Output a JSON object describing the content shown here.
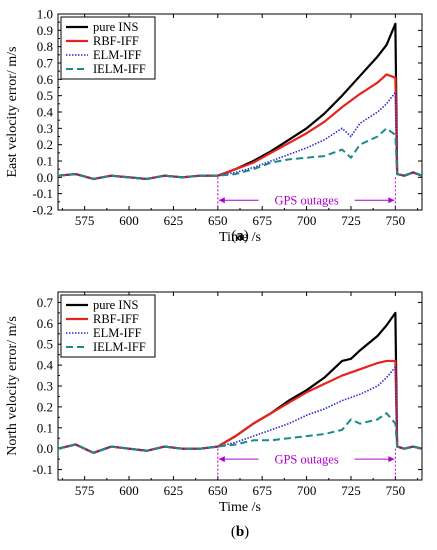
{
  "chart_data": [
    {
      "type": "line",
      "panel_label": "a",
      "xlabel": "Time /s",
      "ylabel": "East velocity error/ m/s",
      "xlim": [
        560,
        765
      ],
      "ylim": [
        -0.2,
        1.0
      ],
      "xticks": [
        575,
        600,
        625,
        650,
        675,
        700,
        725,
        750
      ],
      "yticks": [
        -0.2,
        -0.1,
        0.0,
        0.1,
        0.2,
        0.3,
        0.4,
        0.5,
        0.6,
        0.7,
        0.8,
        0.9,
        1.0
      ],
      "legend_position": "top-left",
      "annotation": {
        "text": "GPS outages",
        "x_start": 650,
        "x_end": 750,
        "y": -0.14
      },
      "series": [
        {
          "name": "pure INS",
          "color": "#000000",
          "style": "solid",
          "x": [
            560,
            570,
            580,
            590,
            600,
            610,
            620,
            630,
            640,
            650,
            660,
            670,
            680,
            690,
            700,
            710,
            720,
            730,
            740,
            745,
            750,
            751,
            755,
            760,
            765
          ],
          "y": [
            0.01,
            0.02,
            -0.01,
            0.01,
            0.0,
            -0.01,
            0.01,
            0.0,
            0.01,
            0.01,
            0.05,
            0.1,
            0.16,
            0.23,
            0.3,
            0.39,
            0.5,
            0.62,
            0.74,
            0.81,
            0.94,
            0.02,
            0.01,
            0.03,
            0.01
          ]
        },
        {
          "name": "RBF-IFF",
          "color": "#e8231c",
          "style": "solid",
          "x": [
            560,
            570,
            580,
            590,
            600,
            610,
            620,
            630,
            640,
            650,
            660,
            670,
            680,
            690,
            700,
            710,
            720,
            730,
            740,
            745,
            750,
            751,
            755,
            760,
            765
          ],
          "y": [
            0.01,
            0.02,
            -0.01,
            0.01,
            0.0,
            -0.01,
            0.01,
            0.0,
            0.01,
            0.01,
            0.05,
            0.09,
            0.15,
            0.21,
            0.27,
            0.34,
            0.43,
            0.51,
            0.58,
            0.63,
            0.61,
            0.02,
            0.01,
            0.03,
            0.01
          ]
        },
        {
          "name": "ELM-IFF",
          "color": "#2a2ad8",
          "style": "dotted",
          "x": [
            560,
            570,
            580,
            590,
            600,
            610,
            620,
            630,
            640,
            650,
            660,
            670,
            680,
            690,
            700,
            710,
            720,
            725,
            730,
            740,
            745,
            750,
            751,
            755,
            760,
            765
          ],
          "y": [
            0.01,
            0.02,
            -0.01,
            0.01,
            0.0,
            -0.01,
            0.01,
            0.0,
            0.01,
            0.01,
            0.03,
            0.06,
            0.1,
            0.14,
            0.18,
            0.23,
            0.3,
            0.25,
            0.33,
            0.4,
            0.45,
            0.52,
            0.02,
            0.01,
            0.03,
            0.01
          ]
        },
        {
          "name": "IELM-IFF",
          "color": "#1a8a8a",
          "style": "dashed",
          "x": [
            560,
            570,
            580,
            590,
            600,
            610,
            620,
            630,
            640,
            650,
            660,
            670,
            680,
            690,
            700,
            710,
            720,
            725,
            730,
            740,
            745,
            750,
            751,
            755,
            760,
            765
          ],
          "y": [
            0.01,
            0.02,
            -0.01,
            0.01,
            0.0,
            -0.01,
            0.01,
            0.0,
            0.01,
            0.01,
            0.02,
            0.05,
            0.09,
            0.11,
            0.12,
            0.13,
            0.17,
            0.12,
            0.2,
            0.25,
            0.3,
            0.26,
            0.02,
            0.01,
            0.03,
            0.01
          ]
        }
      ]
    },
    {
      "type": "line",
      "panel_label": "b",
      "xlabel": "Time /s",
      "ylabel": "North velocity error/ m/s",
      "xlim": [
        560,
        765
      ],
      "ylim": [
        -0.15,
        0.75
      ],
      "xticks": [
        575,
        600,
        625,
        650,
        675,
        700,
        725,
        750
      ],
      "yticks": [
        -0.1,
        0.0,
        0.1,
        0.2,
        0.3,
        0.4,
        0.5,
        0.6,
        0.7
      ],
      "legend_position": "top-left",
      "annotation": {
        "text": "GPS outages",
        "x_start": 650,
        "x_end": 750,
        "y": -0.05
      },
      "series": [
        {
          "name": "pure INS",
          "color": "#000000",
          "style": "solid",
          "x": [
            560,
            570,
            580,
            590,
            600,
            610,
            620,
            630,
            640,
            650,
            660,
            670,
            680,
            690,
            700,
            710,
            720,
            725,
            730,
            740,
            745,
            750,
            751,
            755,
            760,
            765
          ],
          "y": [
            0.0,
            0.02,
            -0.02,
            0.01,
            0.0,
            -0.01,
            0.01,
            0.0,
            0.0,
            0.01,
            0.06,
            0.12,
            0.17,
            0.23,
            0.28,
            0.34,
            0.42,
            0.43,
            0.47,
            0.54,
            0.59,
            0.65,
            0.01,
            0.0,
            0.01,
            0.0
          ]
        },
        {
          "name": "RBF-IFF",
          "color": "#e8231c",
          "style": "solid",
          "x": [
            560,
            570,
            580,
            590,
            600,
            610,
            620,
            630,
            640,
            650,
            660,
            670,
            680,
            690,
            700,
            710,
            720,
            730,
            740,
            745,
            750,
            751,
            755,
            760,
            765
          ],
          "y": [
            0.0,
            0.02,
            -0.02,
            0.01,
            0.0,
            -0.01,
            0.01,
            0.0,
            0.0,
            0.01,
            0.06,
            0.12,
            0.17,
            0.22,
            0.27,
            0.31,
            0.35,
            0.38,
            0.41,
            0.42,
            0.42,
            0.01,
            0.0,
            0.01,
            0.0
          ]
        },
        {
          "name": "ELM-IFF",
          "color": "#2a2ad8",
          "style": "dotted",
          "x": [
            560,
            570,
            580,
            590,
            600,
            610,
            620,
            630,
            640,
            650,
            660,
            670,
            680,
            690,
            700,
            710,
            720,
            730,
            740,
            745,
            750,
            751,
            755,
            760,
            765
          ],
          "y": [
            0.0,
            0.02,
            -0.02,
            0.01,
            0.0,
            -0.01,
            0.01,
            0.0,
            0.0,
            0.01,
            0.03,
            0.06,
            0.09,
            0.12,
            0.16,
            0.19,
            0.23,
            0.26,
            0.3,
            0.34,
            0.39,
            0.01,
            0.0,
            0.01,
            0.0
          ]
        },
        {
          "name": "IELM-IFF",
          "color": "#1a8a8a",
          "style": "dashed",
          "x": [
            560,
            570,
            580,
            590,
            600,
            610,
            620,
            630,
            640,
            650,
            660,
            670,
            680,
            690,
            700,
            710,
            720,
            725,
            730,
            740,
            745,
            750,
            751,
            755,
            760,
            765
          ],
          "y": [
            0.0,
            0.02,
            -0.02,
            0.01,
            0.0,
            -0.01,
            0.01,
            0.0,
            0.0,
            0.01,
            0.02,
            0.04,
            0.04,
            0.05,
            0.06,
            0.07,
            0.09,
            0.14,
            0.12,
            0.14,
            0.17,
            0.12,
            0.01,
            0.0,
            0.01,
            0.0
          ]
        }
      ]
    }
  ]
}
